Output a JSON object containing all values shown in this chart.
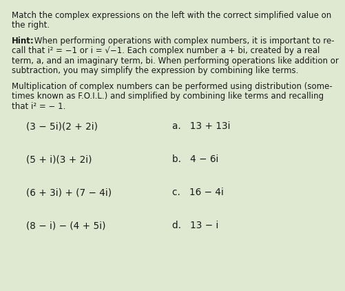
{
  "bg_color": "#dfe8d0",
  "text_color": "#1a1a1a",
  "title_line1": "Match the complex expressions on the left with the correct simplified value on",
  "title_line2": "the right.",
  "hint_bold": "Hint:",
  "hint_rest": " When performing operations with complex numbers, it is important to re-",
  "hint_line2": "call that i² = −1 or i = √−1. Each complex number a + bi, created by a real",
  "hint_line3": "term, a, and an imaginary term, bi. When performing operations like addition or",
  "hint_line4": "subtraction, you may simplify the expression by combining like terms.",
  "mult_line1": "Multiplication of complex numbers can be performed using distribution (some-",
  "mult_line2": "times known as F.O.I.L.) and simplified by combining like terms and recalling",
  "mult_line3": "that i² = − 1.",
  "expressions": [
    "(3 − 5i)(2 + 2i)",
    "(5 + i)(3 + 2i)",
    "(6 + 3i) + (7 − 4i)",
    "(8 − i) − (4 + 5i)"
  ],
  "answers": [
    "a.   13 + 13i",
    "b.   4 − 6i",
    "c.   16 − 4i",
    "d.   13 − i"
  ],
  "fontsize_body": 8.5,
  "fontsize_expr": 9.8
}
